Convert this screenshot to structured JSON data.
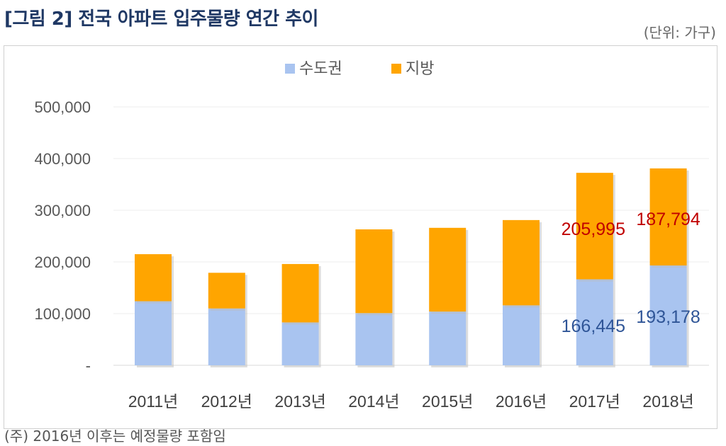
{
  "title": "[그림 2] 전국 아파트 입주물량 연간 추이",
  "unit": "(단위: 가구)",
  "note": "(주) 2016년 이후는 예정물량 포함임",
  "chart_data": {
    "type": "bar",
    "stacked": true,
    "categories": [
      "2011년",
      "2012년",
      "2013년",
      "2014년",
      "2015년",
      "2016년",
      "2017년",
      "2018년"
    ],
    "series": [
      {
        "name": "수도권",
        "color": "#a9c4f0",
        "label_color": "#2f5597",
        "values": [
          124000,
          110000,
          83000,
          101000,
          104000,
          116000,
          166445,
          193178
        ],
        "data_labels": [
          null,
          null,
          null,
          null,
          null,
          null,
          "166,445",
          "193,178"
        ]
      },
      {
        "name": "지방",
        "color": "#ffa500",
        "label_color": "#c00000",
        "values": [
          91000,
          69000,
          113000,
          162000,
          162000,
          165000,
          205995,
          187794
        ],
        "data_labels": [
          null,
          null,
          null,
          null,
          null,
          null,
          "205,995",
          "187,794"
        ]
      }
    ],
    "ylim": [
      0,
      500000
    ],
    "yticks": [
      "-",
      "100,000",
      "200,000",
      "300,000",
      "400,000",
      "500,000"
    ],
    "grid": true,
    "legend": "top"
  }
}
